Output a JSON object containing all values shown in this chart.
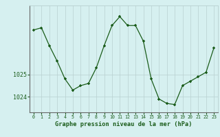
{
  "hours": [
    0,
    1,
    2,
    3,
    4,
    5,
    6,
    7,
    8,
    9,
    10,
    11,
    12,
    13,
    14,
    15,
    16,
    17,
    18,
    19,
    20,
    21,
    22,
    23
  ],
  "pressure": [
    1027.0,
    1027.1,
    1026.3,
    1025.6,
    1024.8,
    1024.3,
    1024.5,
    1024.6,
    1025.3,
    1026.3,
    1027.2,
    1027.6,
    1027.2,
    1027.2,
    1026.5,
    1024.8,
    1023.9,
    1023.7,
    1023.65,
    1024.5,
    1024.7,
    1024.9,
    1025.1,
    1026.2
  ],
  "line_color": "#1a5c1a",
  "marker_color": "#1a5c1a",
  "bg_color": "#d6f0f0",
  "grid_color": "#b8d0d0",
  "xlabel": "Graphe pression niveau de la mer (hPa)",
  "xlabel_color": "#1a5c1a",
  "tick_color": "#1a5c1a",
  "ytick_labels": [
    "1024",
    "1025"
  ],
  "ytick_values": [
    1024.0,
    1025.0
  ],
  "ylim": [
    1023.3,
    1028.1
  ],
  "xlim": [
    -0.5,
    23.5
  ]
}
